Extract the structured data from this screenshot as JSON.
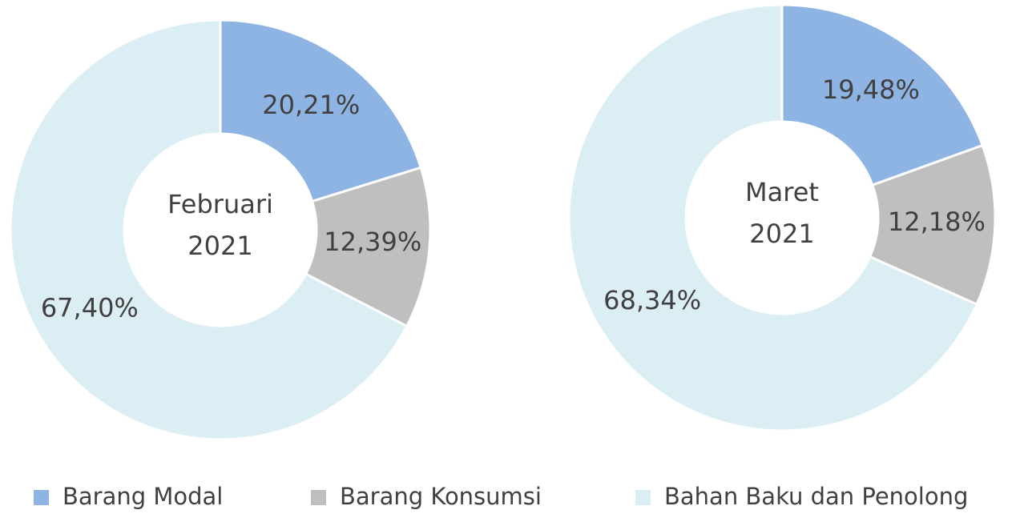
{
  "legend": [
    "Barang Modal",
    "Barang Konsumsi",
    "Bahan Baku dan Penolong"
  ],
  "colors": [
    "#8eb4e3",
    "#bfbfbf",
    "#dbeef4"
  ],
  "chart_data": [
    {
      "type": "donut",
      "title": [
        "Februari",
        "2021"
      ],
      "values": [
        20.21,
        12.39,
        67.4
      ],
      "value_labels": [
        "20,21%",
        "12,39%",
        "67,40%"
      ]
    },
    {
      "type": "donut",
      "title": [
        "Maret",
        "2021"
      ],
      "values": [
        19.48,
        12.18,
        68.34
      ],
      "value_labels": [
        "19,48%",
        "12,18%",
        "68,34%"
      ]
    }
  ]
}
